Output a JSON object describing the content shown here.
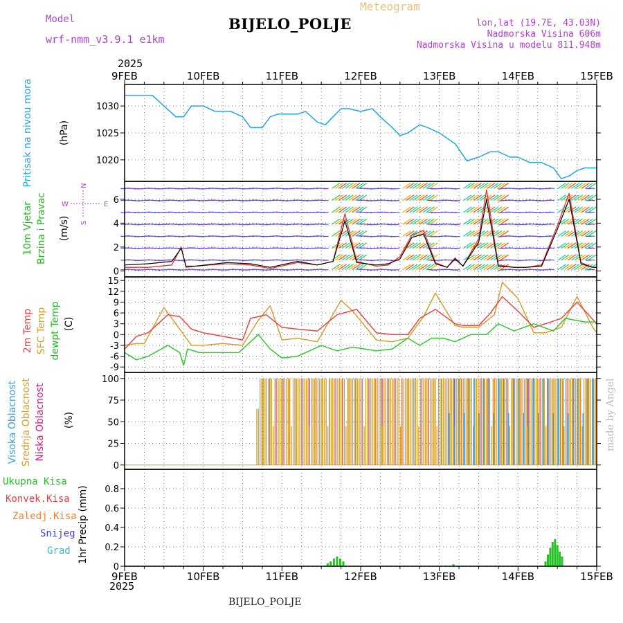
{
  "header": {
    "model_label": "Model",
    "model_name": "wrf-nmm_v3.9.1  e1km",
    "product": "Meteogram",
    "station": "BIJELO_POLJE",
    "lonlat": "lon,lat (19.7E, 43.03N)",
    "altitude": "Nadmorska Visina 606m",
    "model_altitude": "Nadmorska Visina u modelu 811.948m",
    "year_top": "2025",
    "year_bottom": "2025",
    "footer_station": "BIJELO_POLJE",
    "credit": "made by Angel"
  },
  "colors": {
    "pressure": "#1ea7e6",
    "wind_speed": "#000000",
    "wind_gust": "#e83030",
    "t2m": "#e84545",
    "tsfc": "#d4a030",
    "dewpoint": "#30c830",
    "cloud_high": "#3a9ee0",
    "cloud_mid": "#d4a030",
    "cloud_low": "#d0207a",
    "precip_total": "#22c322",
    "precip_conv": "#e84040",
    "precip_frozen": "#f08030",
    "snow": "#4040e0",
    "hail": "#30c0c0",
    "grid": "#7a7a7a",
    "purple_text": "#b040d0"
  },
  "chart_data": [
    {
      "type": "line",
      "panel": "pressure",
      "title": "Pritisak na nivou mora",
      "ylabel": "(hPa)",
      "x_ticks": [
        "9FEB",
        "10FEB",
        "11FEB",
        "12FEB",
        "13FEB",
        "14FEB",
        "15FEB"
      ],
      "x_unit": "days since 9FEB 00z",
      "ylim": [
        1016,
        1034
      ],
      "yticks": [
        1020,
        1025,
        1030
      ],
      "grid": true,
      "series": [
        {
          "name": "Pritisak na nivou mora",
          "x": [
            0,
            0.1,
            0.35,
            0.5,
            0.65,
            0.75,
            0.85,
            1.0,
            1.15,
            1.35,
            1.5,
            1.6,
            1.75,
            1.85,
            1.95,
            2.05,
            2.2,
            2.3,
            2.45,
            2.55,
            2.65,
            2.75,
            2.85,
            3.0,
            3.15,
            3.25,
            3.4,
            3.5,
            3.6,
            3.75,
            3.85,
            4.0,
            4.2,
            4.35,
            4.5,
            4.65,
            4.75,
            4.9,
            5.0,
            5.15,
            5.3,
            5.45,
            5.55,
            5.65,
            5.75,
            5.85,
            6.0
          ],
          "values": [
            1032,
            1032,
            1032,
            1030,
            1028,
            1028,
            1030,
            1030,
            1029,
            1029,
            1028,
            1026,
            1026,
            1028,
            1028.5,
            1028.5,
            1028.5,
            1029,
            1027,
            1026.5,
            1028,
            1029.5,
            1029.5,
            1029,
            1029.5,
            1028,
            1026,
            1024.5,
            1025,
            1026.5,
            1026,
            1025,
            1023,
            1019.8,
            1020.5,
            1021.5,
            1021.5,
            1020.5,
            1020.5,
            1019.5,
            1019.5,
            1018.5,
            1016.5,
            1017,
            1018,
            1018.5,
            1018.5
          ]
        }
      ]
    },
    {
      "type": "line",
      "panel": "wind",
      "title_lines": [
        "10m Vjetar",
        "Brzina i Pravac"
      ],
      "ylabel": "(m/s)",
      "legend_compass": [
        "N",
        "S",
        "W",
        "E"
      ],
      "ylim": [
        -0.5,
        7.5
      ],
      "yticks": [
        0,
        2,
        4,
        6
      ],
      "grid": true,
      "series": [
        {
          "name": "Brzina",
          "x": [
            0,
            0.3,
            0.6,
            0.72,
            0.78,
            0.9,
            1.3,
            1.6,
            1.85,
            2.2,
            2.45,
            2.65,
            2.8,
            2.95,
            3.2,
            3.35,
            3.5,
            3.65,
            3.8,
            3.95,
            4.1,
            4.2,
            4.3,
            4.5,
            4.6,
            4.75,
            4.95,
            5.1,
            5.3,
            5.5,
            5.65,
            5.8,
            5.95,
            6.0
          ],
          "values": [
            0.5,
            0.6,
            0.8,
            1.9,
            0.4,
            0.4,
            0.7,
            0.6,
            0.3,
            0.8,
            0.5,
            0.8,
            4.2,
            0.7,
            0.5,
            0.6,
            1.0,
            2.8,
            3.1,
            0.6,
            0.3,
            1.0,
            0.4,
            2.4,
            6.0,
            0.4,
            0.3,
            0.3,
            0.4,
            3.5,
            6.0,
            0.6,
            0.3,
            0.3
          ]
        },
        {
          "name": "Udar",
          "x": [
            0,
            0.3,
            0.6,
            0.72,
            0.78,
            0.9,
            1.3,
            1.6,
            1.85,
            2.2,
            2.45,
            2.65,
            2.8,
            2.95,
            3.2,
            3.35,
            3.5,
            3.65,
            3.8,
            3.95,
            4.1,
            4.2,
            4.3,
            4.5,
            4.6,
            4.75,
            4.95,
            5.1,
            5.3,
            5.5,
            5.65,
            5.8,
            5.95,
            6.0
          ],
          "values": [
            0.3,
            0.3,
            0.5,
            2.0,
            0.3,
            0.4,
            0.6,
            0.5,
            0.2,
            0.7,
            0.5,
            0.8,
            4.8,
            0.8,
            0.4,
            0.5,
            1.2,
            3.0,
            3.4,
            0.7,
            0.3,
            1.1,
            0.4,
            2.7,
            6.8,
            0.5,
            0.3,
            0.3,
            0.5,
            3.8,
            6.5,
            0.7,
            0.3,
            0.3
          ]
        }
      ]
    },
    {
      "type": "line",
      "panel": "temperature",
      "title_lines": [
        "2m Temp",
        "SFC Temp",
        "dewpt Temp"
      ],
      "ylabel": "(C)",
      "ylim": [
        -10.5,
        16
      ],
      "yticks": [
        -9,
        -6,
        -3,
        0,
        3,
        6,
        9,
        12,
        15
      ],
      "grid": true,
      "series": [
        {
          "name": "2m Temp",
          "x": [
            0,
            0.15,
            0.3,
            0.55,
            0.7,
            0.85,
            1.0,
            1.25,
            1.5,
            1.6,
            1.8,
            2.0,
            2.2,
            2.45,
            2.7,
            2.95,
            3.2,
            3.4,
            3.6,
            3.75,
            3.95,
            4.2,
            4.3,
            4.5,
            4.65,
            4.8,
            5.0,
            5.2,
            5.35,
            5.55,
            5.75,
            6.0
          ],
          "values": [
            -4,
            -0.5,
            0.5,
            5.5,
            5.0,
            1.5,
            0.5,
            -0.5,
            -1.5,
            4.5,
            5.5,
            2.0,
            1.5,
            1.0,
            5.5,
            7.0,
            0.5,
            0.0,
            0.0,
            4.5,
            7.0,
            3.0,
            2.5,
            2.5,
            6.0,
            10.5,
            6.5,
            2.0,
            3.0,
            4.5,
            9.0,
            3.0
          ]
        },
        {
          "name": "SFC Temp",
          "x": [
            0,
            0.15,
            0.25,
            0.5,
            0.65,
            0.85,
            1.0,
            1.25,
            1.5,
            1.7,
            1.85,
            2.0,
            2.2,
            2.45,
            2.75,
            2.9,
            3.2,
            3.4,
            3.6,
            3.8,
            3.95,
            4.2,
            4.3,
            4.5,
            4.7,
            4.8,
            5.0,
            5.2,
            5.35,
            5.55,
            5.75,
            5.95,
            6.0
          ],
          "values": [
            -3,
            -2.5,
            -2.5,
            7.5,
            3.0,
            -3.0,
            -3.0,
            -2.5,
            -3.0,
            4.0,
            8.0,
            -1.5,
            -1.0,
            -2.0,
            9.5,
            6.5,
            -1.5,
            -2.0,
            -1.0,
            5.0,
            11.5,
            2.5,
            2.0,
            2.0,
            5.5,
            14.5,
            10.0,
            0.5,
            0.5,
            2.0,
            10.5,
            2.0,
            0.5
          ]
        },
        {
          "name": "dewpt Temp",
          "x": [
            0,
            0.15,
            0.3,
            0.55,
            0.7,
            0.75,
            0.8,
            0.95,
            1.2,
            1.45,
            1.7,
            1.85,
            2.0,
            2.2,
            2.5,
            2.7,
            2.9,
            3.2,
            3.4,
            3.6,
            3.75,
            3.9,
            4.05,
            4.2,
            4.4,
            4.6,
            4.75,
            4.95,
            5.2,
            5.45,
            5.6,
            5.85,
            6.0
          ],
          "values": [
            -5,
            -7,
            -6,
            -3,
            -5,
            -8.5,
            -4,
            -5,
            -5,
            -5,
            0,
            -4,
            -6.5,
            -6,
            -3,
            -4.5,
            -3.5,
            -4.5,
            -4,
            -1,
            -3,
            -1,
            -1,
            -2,
            0,
            0,
            3,
            1,
            3,
            1,
            4.5,
            3.5,
            3.5
          ]
        }
      ]
    },
    {
      "type": "bar",
      "panel": "cloud",
      "title_lines": [
        "Visoka Oblacnost",
        "Srednja Oblacnost",
        "Niska Oblacnost"
      ],
      "ylabel": "(%)",
      "ylim": [
        -5,
        107
      ],
      "yticks": [
        0,
        25,
        50,
        75,
        100
      ],
      "grid": true,
      "note": "near 0% from 9FEB until ~10FEB 18z, then alternating bars mostly at 100%",
      "series": [
        {
          "name": "Srednja Oblacnost",
          "onset_x": 1.68,
          "typical_value": 100
        },
        {
          "name": "Niska Oblacnost",
          "onset_x": 1.68,
          "typical_value": 100
        },
        {
          "name": "Visoka Oblacnost",
          "onset_x": 4.1,
          "typical_value": 100
        }
      ]
    },
    {
      "type": "bar",
      "panel": "precip",
      "legend": [
        "Ukupna  Kisa",
        "Konvek.Kisa",
        "Zaledj.Kisa",
        "Snijeg",
        "Grad"
      ],
      "ylabel": "1hr Precip (mm)",
      "ylim": [
        0,
        1.0
      ],
      "yticks": [
        0,
        0.2,
        0.4,
        0.6,
        0.8
      ],
      "grid": true,
      "series": [
        {
          "name": "Ukupna  Kisa",
          "x": [
            2.58,
            2.62,
            2.66,
            2.7,
            2.74,
            2.78,
            4.18,
            5.35,
            5.38,
            5.41,
            5.44,
            5.47,
            5.5,
            5.53,
            5.56
          ],
          "values": [
            0.03,
            0.05,
            0.08,
            0.1,
            0.08,
            0.05,
            0.02,
            0.05,
            0.12,
            0.19,
            0.25,
            0.28,
            0.22,
            0.15,
            0.1
          ]
        }
      ]
    }
  ]
}
